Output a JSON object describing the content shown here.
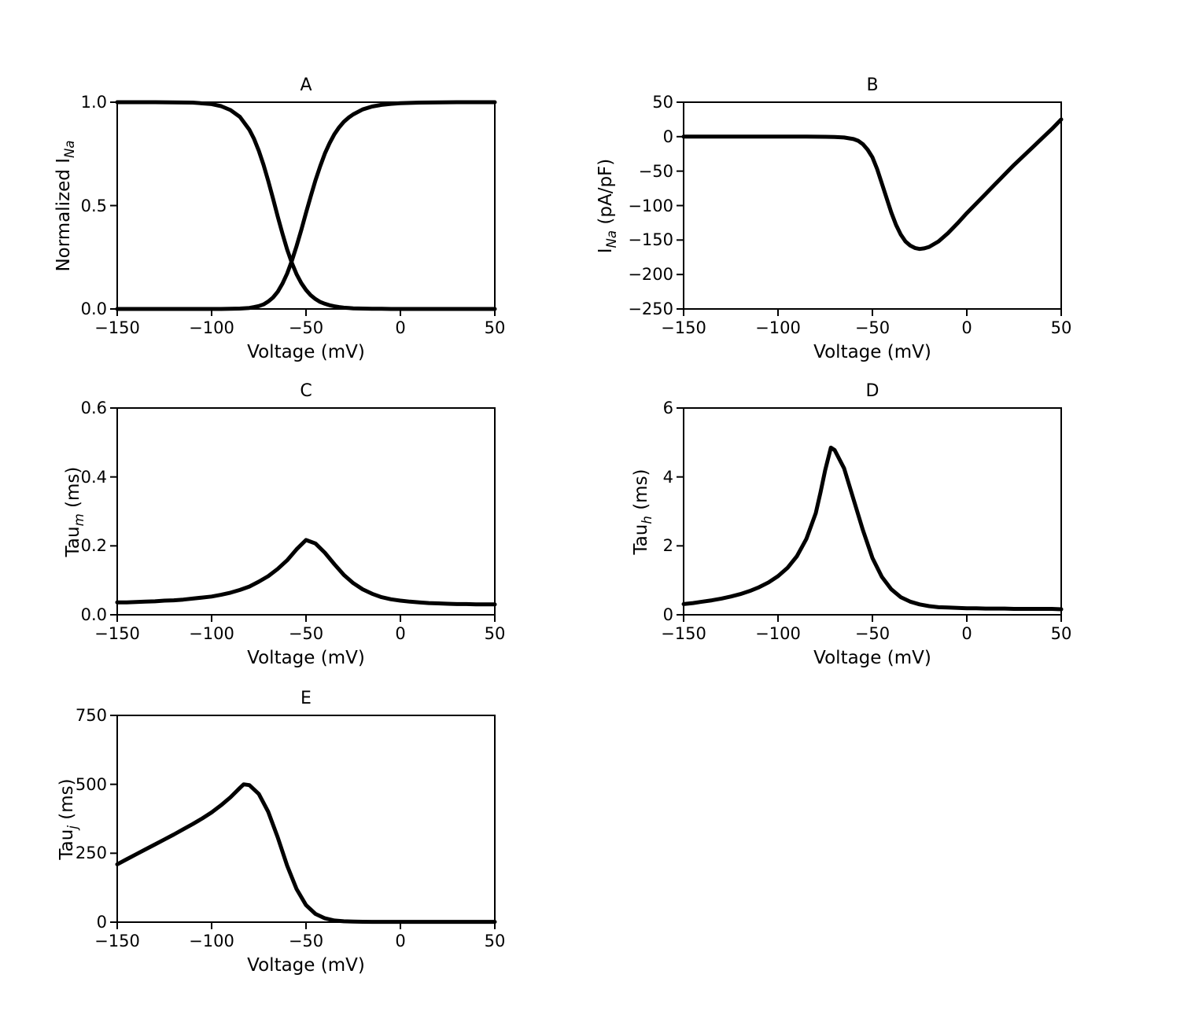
{
  "figure": {
    "background": "#ffffff",
    "curve_color": "#000000",
    "axis_color": "#000000"
  },
  "chart_data": [
    {
      "id": "A",
      "type": "line",
      "title": "A",
      "xlabel": "Voltage (mV)",
      "ylabel": {
        "prefix": "Normalized I",
        "sub": "Na",
        "suffix": ""
      },
      "xlim": [
        -150,
        50
      ],
      "ylim": [
        0,
        1
      ],
      "xticks": [
        -150,
        -100,
        -50,
        0,
        50
      ],
      "xtick_labels": [
        "−150",
        "−100",
        "−50",
        "0",
        "50"
      ],
      "yticks": [
        0,
        0.5,
        1
      ],
      "ytick_labels": [
        "0.0",
        "0.5",
        "1.0"
      ],
      "grid": false,
      "legend": null,
      "line_width": 5,
      "series": [
        {
          "name": "steady-state-inactivation",
          "x": [
            -150,
            -140,
            -130,
            -120,
            -110,
            -100,
            -95,
            -90,
            -85,
            -80,
            -77.5,
            -75,
            -72.5,
            -70,
            -67.5,
            -65,
            -62.5,
            -60,
            -57.5,
            -55,
            -52.5,
            -50,
            -47.5,
            -45,
            -42.5,
            -40,
            -37.5,
            -35,
            -32.5,
            -30,
            -27.5,
            -25,
            -20,
            -15,
            -10,
            -5,
            0,
            10,
            20,
            30,
            40,
            50
          ],
          "y": [
            1,
            1,
            1,
            0.999,
            0.998,
            0.991,
            0.981,
            0.962,
            0.929,
            0.867,
            0.822,
            0.765,
            0.697,
            0.619,
            0.535,
            0.448,
            0.365,
            0.288,
            0.223,
            0.168,
            0.125,
            0.092,
            0.066,
            0.048,
            0.034,
            0.025,
            0.018,
            0.013,
            0.009,
            0.006,
            0.005,
            0.003,
            0.002,
            0.001,
            0.001,
            0,
            0,
            0,
            0,
            0,
            0,
            0
          ]
        },
        {
          "name": "steady-state-activation",
          "x": [
            -150,
            -140,
            -130,
            -120,
            -110,
            -100,
            -95,
            -90,
            -85,
            -80,
            -77.5,
            -75,
            -72.5,
            -70,
            -67.5,
            -65,
            -62.5,
            -60,
            -57.5,
            -55,
            -52.5,
            -50,
            -47.5,
            -45,
            -42.5,
            -40,
            -37.5,
            -35,
            -32.5,
            -30,
            -27.5,
            -25,
            -20,
            -15,
            -10,
            -5,
            0,
            10,
            20,
            30,
            40,
            50
          ],
          "y": [
            0,
            0,
            0,
            0,
            0,
            0,
            0,
            0.001,
            0.002,
            0.005,
            0.009,
            0.014,
            0.022,
            0.036,
            0.055,
            0.083,
            0.122,
            0.171,
            0.233,
            0.304,
            0.382,
            0.465,
            0.545,
            0.622,
            0.69,
            0.752,
            0.802,
            0.845,
            0.878,
            0.905,
            0.925,
            0.941,
            0.965,
            0.979,
            0.987,
            0.992,
            0.995,
            0.998,
            0.999,
            1,
            1,
            1
          ]
        }
      ]
    },
    {
      "id": "B",
      "type": "line",
      "title": "B",
      "xlabel": "Voltage (mV)",
      "ylabel": {
        "prefix": "I",
        "sub": "Na",
        "suffix": " (pA/pF)"
      },
      "xlim": [
        -150,
        50
      ],
      "ylim": [
        -250,
        50
      ],
      "xticks": [
        -150,
        -100,
        -50,
        0,
        50
      ],
      "xtick_labels": [
        "−150",
        "−100",
        "−50",
        "0",
        "50"
      ],
      "yticks": [
        50,
        0,
        -50,
        -100,
        -150,
        -200,
        -250
      ],
      "ytick_labels": [
        "50",
        "0",
        "−50",
        "−100",
        "−150",
        "−200",
        "−250"
      ],
      "grid": false,
      "legend": null,
      "line_width": 5,
      "series": [
        {
          "name": "peak-current-voltage-relation",
          "x": [
            -150,
            -140,
            -130,
            -120,
            -110,
            -100,
            -90,
            -85,
            -80,
            -75,
            -70,
            -65,
            -60,
            -57.5,
            -55,
            -52.5,
            -50,
            -47.5,
            -45,
            -42.5,
            -40,
            -37.5,
            -35,
            -32.5,
            -30,
            -27.5,
            -25,
            -22.5,
            -20,
            -15,
            -10,
            -5,
            0,
            5,
            10,
            15,
            20,
            25,
            30,
            35,
            40,
            45,
            50
          ],
          "y": [
            0,
            0,
            0,
            0,
            0,
            0,
            0,
            0,
            -0.1,
            -0.2,
            -0.5,
            -1.2,
            -3.5,
            -6,
            -11,
            -19,
            -30,
            -47,
            -68,
            -89,
            -110,
            -128,
            -142,
            -152,
            -158,
            -161.5,
            -163,
            -162,
            -160,
            -152,
            -140,
            -126,
            -111,
            -97,
            -83,
            -69,
            -55,
            -41,
            -28,
            -15,
            -2,
            11,
            25
          ]
        }
      ]
    },
    {
      "id": "C",
      "type": "line",
      "title": "C",
      "xlabel": "Voltage (mV)",
      "ylabel": {
        "prefix": "Tau",
        "sub": "m",
        "suffix": " (ms)"
      },
      "xlim": [
        -150,
        50
      ],
      "ylim": [
        0,
        0.6
      ],
      "xticks": [
        -150,
        -100,
        -50,
        0,
        50
      ],
      "xtick_labels": [
        "−150",
        "−100",
        "−50",
        "0",
        "50"
      ],
      "yticks": [
        0,
        0.2,
        0.4,
        0.6
      ],
      "ytick_labels": [
        "0.0",
        "0.2",
        "0.4",
        "0.6"
      ],
      "grid": false,
      "legend": null,
      "line_width": 5,
      "series": [
        {
          "name": "tau-m",
          "x": [
            -150,
            -145,
            -140,
            -135,
            -130,
            -125,
            -120,
            -115,
            -110,
            -105,
            -100,
            -95,
            -90,
            -85,
            -80,
            -75,
            -70,
            -65,
            -60,
            -55,
            -50,
            -45,
            -40,
            -35,
            -30,
            -25,
            -20,
            -15,
            -10,
            -5,
            0,
            5,
            10,
            15,
            20,
            25,
            30,
            35,
            40,
            45,
            50
          ],
          "y": [
            0.036,
            0.036,
            0.037,
            0.038,
            0.039,
            0.041,
            0.042,
            0.044,
            0.047,
            0.05,
            0.053,
            0.058,
            0.064,
            0.072,
            0.082,
            0.096,
            0.112,
            0.133,
            0.158,
            0.19,
            0.217,
            0.207,
            0.18,
            0.147,
            0.116,
            0.092,
            0.074,
            0.061,
            0.051,
            0.045,
            0.041,
            0.038,
            0.036,
            0.034,
            0.033,
            0.032,
            0.031,
            0.031,
            0.03,
            0.03,
            0.03
          ]
        }
      ]
    },
    {
      "id": "D",
      "type": "line",
      "title": "D",
      "xlabel": "Voltage (mV)",
      "ylabel": {
        "prefix": "Tau",
        "sub": "h",
        "suffix": " (ms)"
      },
      "xlim": [
        -150,
        50
      ],
      "ylim": [
        0,
        6
      ],
      "xticks": [
        -150,
        -100,
        -50,
        0,
        50
      ],
      "xtick_labels": [
        "−150",
        "−100",
        "−50",
        "0",
        "50"
      ],
      "yticks": [
        0,
        2,
        4,
        6
      ],
      "ytick_labels": [
        "0",
        "2",
        "4",
        "6"
      ],
      "grid": false,
      "legend": null,
      "line_width": 5,
      "series": [
        {
          "name": "tau-h",
          "x": [
            -150,
            -145,
            -140,
            -135,
            -130,
            -125,
            -120,
            -115,
            -110,
            -105,
            -100,
            -95,
            -90,
            -85,
            -80,
            -77.5,
            -75,
            -72,
            -70,
            -65,
            -60,
            -55,
            -50,
            -45,
            -40,
            -35,
            -30,
            -25,
            -20,
            -15,
            -10,
            -5,
            0,
            5,
            10,
            15,
            20,
            25,
            30,
            35,
            40,
            45,
            50
          ],
          "y": [
            0.31,
            0.34,
            0.38,
            0.42,
            0.47,
            0.53,
            0.6,
            0.69,
            0.8,
            0.94,
            1.12,
            1.36,
            1.7,
            2.2,
            2.95,
            3.55,
            4.2,
            4.85,
            4.78,
            4.25,
            3.35,
            2.45,
            1.65,
            1.1,
            0.74,
            0.51,
            0.38,
            0.3,
            0.25,
            0.22,
            0.21,
            0.2,
            0.19,
            0.19,
            0.18,
            0.18,
            0.18,
            0.17,
            0.17,
            0.17,
            0.17,
            0.17,
            0.16
          ]
        }
      ]
    },
    {
      "id": "E",
      "type": "line",
      "title": "E",
      "xlabel": "Voltage (mV)",
      "ylabel": {
        "prefix": "Tau",
        "sub": "j",
        "suffix": " (ms)"
      },
      "xlim": [
        -150,
        50
      ],
      "ylim": [
        0,
        750
      ],
      "xticks": [
        -150,
        -100,
        -50,
        0,
        50
      ],
      "xtick_labels": [
        "−150",
        "−100",
        "−50",
        "0",
        "50"
      ],
      "yticks": [
        0,
        250,
        500,
        750
      ],
      "ytick_labels": [
        "0",
        "250",
        "500",
        "750"
      ],
      "grid": false,
      "legend": null,
      "line_width": 5,
      "series": [
        {
          "name": "tau-j",
          "x": [
            -150,
            -145,
            -140,
            -135,
            -130,
            -125,
            -120,
            -115,
            -110,
            -105,
            -100,
            -95,
            -90,
            -85,
            -83,
            -80,
            -75,
            -70,
            -65,
            -60,
            -55,
            -50,
            -45,
            -40,
            -35,
            -30,
            -25,
            -20,
            -15,
            -10,
            -5,
            0,
            5,
            10,
            15,
            20,
            25,
            30,
            35,
            40,
            45,
            50
          ],
          "y": [
            210,
            228,
            246,
            264,
            282,
            300,
            318,
            337,
            356,
            376,
            398,
            424,
            453,
            487,
            500,
            497,
            465,
            400,
            308,
            205,
            120,
            62,
            30,
            14,
            6,
            3,
            2,
            1.5,
            1.2,
            1,
            1,
            1,
            1,
            1,
            1,
            1,
            1,
            1,
            1,
            1,
            1,
            1
          ]
        }
      ]
    }
  ]
}
